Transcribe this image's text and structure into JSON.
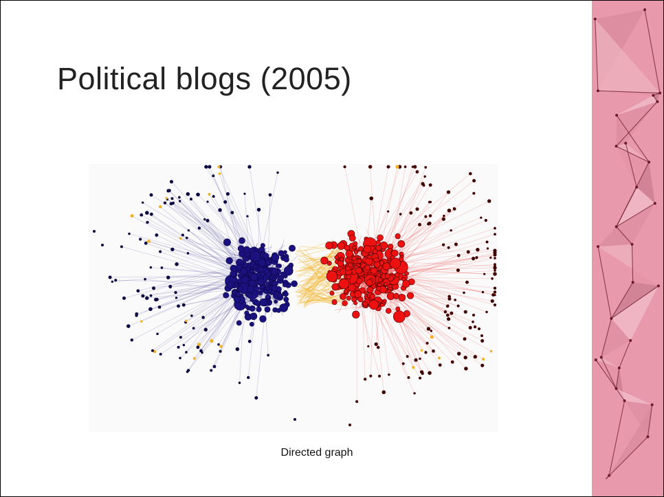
{
  "slide": {
    "title": "Political blogs (2005)",
    "caption": "Directed graph"
  },
  "network": {
    "directed": true,
    "communities": [
      {
        "color": "#1b1280"
      },
      {
        "color": "#ee1111"
      }
    ],
    "bridge_color": "#f2b01e"
  },
  "colors": {
    "sidebar_base": "#e89aac",
    "sidebar_lines": "#6b1a2a",
    "text": "#222222"
  }
}
